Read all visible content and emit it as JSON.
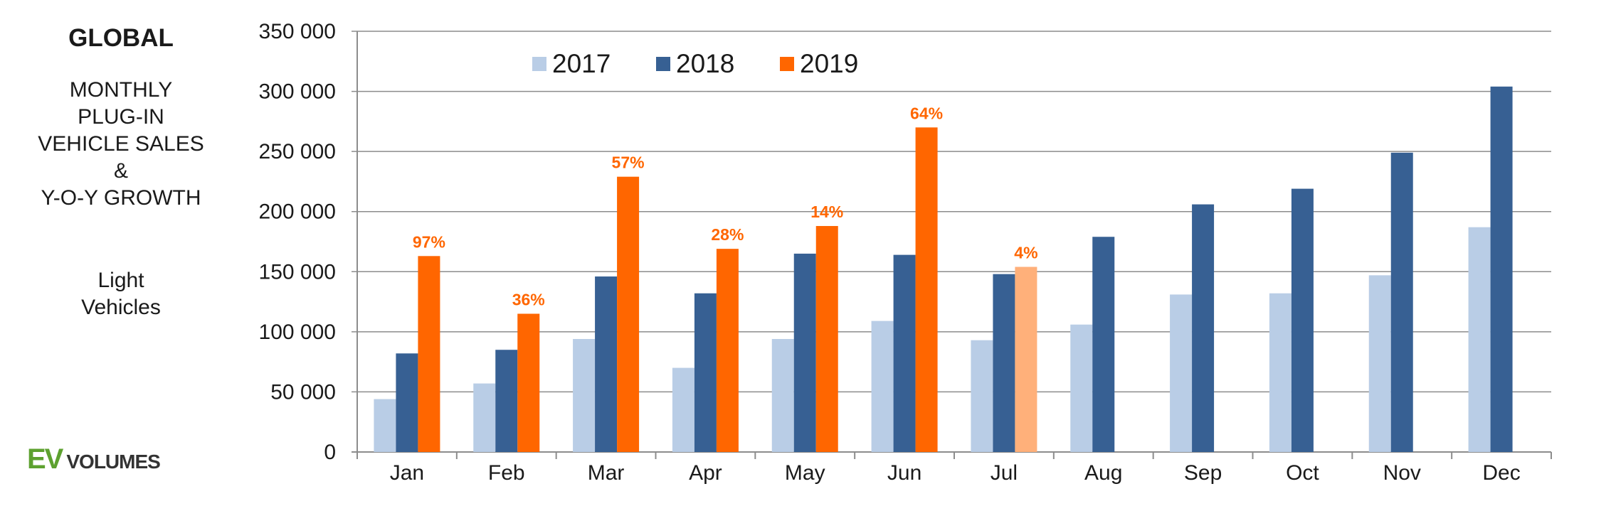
{
  "side": {
    "title": "GLOBAL",
    "subtitle_lines": [
      "MONTHLY",
      "PLUG-IN",
      "VEHICLE SALES",
      "&",
      "Y-O-Y GROWTH"
    ],
    "category_lines": [
      "Light",
      "Vehicles"
    ],
    "logo": {
      "ev": "EV",
      "volumes": "VOLUMES"
    }
  },
  "colors": {
    "s2017": "#b9cde6",
    "s2018": "#376093",
    "s2019": "#ff6600",
    "s2019_partial": "#ffb07a",
    "grid": "#8c8c8c",
    "growth_label": "#ff6600"
  },
  "chart_data": {
    "type": "bar",
    "categories": [
      "Jan",
      "Feb",
      "Mar",
      "Apr",
      "May",
      "Jun",
      "Jul",
      "Aug",
      "Sep",
      "Oct",
      "Nov",
      "Dec"
    ],
    "series": [
      {
        "name": "2017",
        "values": [
          44000,
          57000,
          94000,
          70000,
          94000,
          109000,
          93000,
          106000,
          131000,
          132000,
          147000,
          187000
        ]
      },
      {
        "name": "2018",
        "values": [
          82000,
          85000,
          146000,
          132000,
          165000,
          164000,
          148000,
          179000,
          206000,
          219000,
          249000,
          304000
        ]
      },
      {
        "name": "2019",
        "values": [
          163000,
          115000,
          229000,
          169000,
          188000,
          270000,
          154000,
          null,
          null,
          null,
          null,
          null
        ],
        "highlight": {
          "Jul": "partial"
        }
      }
    ],
    "annotations": {
      "label": "Y-O-Y growth",
      "values": [
        "97%",
        "36%",
        "57%",
        "28%",
        "14%",
        "64%",
        "4%",
        "",
        "",
        "",
        "",
        ""
      ]
    },
    "yticks": [
      "0",
      "50 000",
      "100 000",
      "150 000",
      "200 000",
      "250 000",
      "300 000",
      "350 000"
    ],
    "ylim": [
      0,
      350000
    ],
    "grid": true,
    "legend": {
      "position": "top-left",
      "entries": [
        "2017",
        "2018",
        "2019"
      ]
    }
  }
}
